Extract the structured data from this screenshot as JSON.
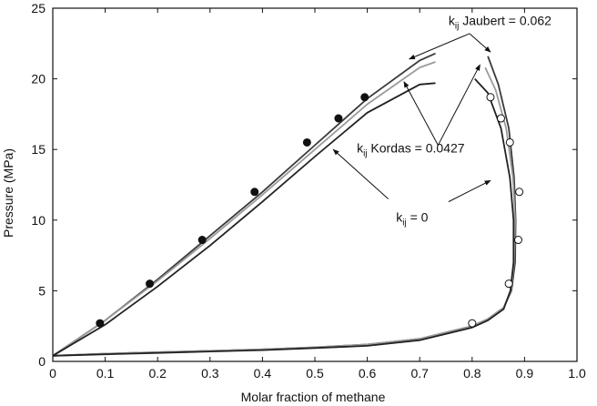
{
  "chart_data": {
    "type": "line",
    "title": "",
    "xlabel": "Molar fraction of methane",
    "ylabel": "Pressure (MPa)",
    "xlim": [
      0,
      1.0
    ],
    "ylim": [
      0,
      25
    ],
    "x_ticks": [
      "0",
      "0.1",
      "0.2",
      "0.3",
      "0.4",
      "0.5",
      "0.6",
      "0.7",
      "0.8",
      "0.9",
      "1.0"
    ],
    "y_ticks": [
      "0",
      "5",
      "10",
      "15",
      "20",
      "25"
    ],
    "grid": false,
    "series": [
      {
        "label_parts": {
          "k": "k",
          "sub": "ij",
          "rest": " Jaubert = 0.062"
        },
        "color": "#3a3a3a",
        "bubble": [
          [
            0,
            0.4
          ],
          [
            0.1,
            2.9
          ],
          [
            0.2,
            5.8
          ],
          [
            0.3,
            8.9
          ],
          [
            0.4,
            12.0
          ],
          [
            0.5,
            15.3
          ],
          [
            0.6,
            18.6
          ],
          [
            0.7,
            21.3
          ],
          [
            0.73,
            21.8
          ]
        ],
        "dew": [
          [
            0.83,
            21.6
          ],
          [
            0.85,
            19.6
          ],
          [
            0.87,
            16.5
          ],
          [
            0.88,
            13.0
          ],
          [
            0.883,
            10.0
          ],
          [
            0.882,
            7.0
          ],
          [
            0.875,
            5.0
          ],
          [
            0.86,
            3.8
          ],
          [
            0.83,
            3.0
          ],
          [
            0.8,
            2.5
          ],
          [
            0.7,
            1.6
          ],
          [
            0.6,
            1.2
          ],
          [
            0.5,
            1.0
          ],
          [
            0.4,
            0.85
          ],
          [
            0.3,
            0.75
          ],
          [
            0.2,
            0.65
          ],
          [
            0.1,
            0.55
          ],
          [
            0,
            0.4
          ]
        ]
      },
      {
        "label_parts": {
          "k": "k",
          "sub": "ij",
          "rest": " Kordas = 0.0427"
        },
        "color": "#9a9a9a",
        "bubble": [
          [
            0,
            0.4
          ],
          [
            0.1,
            2.9
          ],
          [
            0.2,
            5.7
          ],
          [
            0.3,
            8.7
          ],
          [
            0.4,
            11.8
          ],
          [
            0.5,
            15.0
          ],
          [
            0.6,
            18.2
          ],
          [
            0.7,
            20.8
          ],
          [
            0.73,
            21.2
          ]
        ],
        "dew": [
          [
            0.825,
            20.8
          ],
          [
            0.845,
            19.2
          ],
          [
            0.865,
            16.5
          ],
          [
            0.878,
            13.0
          ],
          [
            0.882,
            10.0
          ],
          [
            0.88,
            7.0
          ],
          [
            0.874,
            5.0
          ],
          [
            0.86,
            3.8
          ],
          [
            0.83,
            3.0
          ],
          [
            0.8,
            2.5
          ],
          [
            0.7,
            1.6
          ],
          [
            0.6,
            1.2
          ],
          [
            0.5,
            1.0
          ],
          [
            0.4,
            0.85
          ],
          [
            0.3,
            0.75
          ],
          [
            0.2,
            0.65
          ],
          [
            0.1,
            0.55
          ],
          [
            0,
            0.4
          ]
        ]
      },
      {
        "label_parts": {
          "k": "k",
          "sub": "ij",
          "rest": " = 0"
        },
        "color": "#222222",
        "bubble": [
          [
            0,
            0.4
          ],
          [
            0.1,
            2.6
          ],
          [
            0.2,
            5.3
          ],
          [
            0.3,
            8.2
          ],
          [
            0.4,
            11.3
          ],
          [
            0.5,
            14.5
          ],
          [
            0.6,
            17.6
          ],
          [
            0.7,
            19.6
          ],
          [
            0.73,
            19.7
          ]
        ],
        "dew": [
          [
            0.805,
            20.0
          ],
          [
            0.83,
            19.0
          ],
          [
            0.855,
            16.5
          ],
          [
            0.872,
            13.0
          ],
          [
            0.879,
            10.0
          ],
          [
            0.879,
            7.0
          ],
          [
            0.873,
            5.0
          ],
          [
            0.86,
            3.7
          ],
          [
            0.83,
            2.9
          ],
          [
            0.8,
            2.4
          ],
          [
            0.7,
            1.5
          ],
          [
            0.6,
            1.1
          ],
          [
            0.5,
            0.95
          ],
          [
            0.4,
            0.8
          ],
          [
            0.3,
            0.7
          ],
          [
            0.2,
            0.6
          ],
          [
            0.1,
            0.5
          ],
          [
            0,
            0.4
          ]
        ]
      }
    ],
    "experimental_bubble": [
      [
        0.09,
        2.7
      ],
      [
        0.185,
        5.5
      ],
      [
        0.285,
        8.6
      ],
      [
        0.385,
        12.0
      ],
      [
        0.485,
        15.5
      ],
      [
        0.545,
        17.2
      ],
      [
        0.595,
        18.7
      ]
    ],
    "experimental_dew": [
      [
        0.8,
        2.7
      ],
      [
        0.87,
        5.5
      ],
      [
        0.888,
        8.6
      ],
      [
        0.89,
        12.0
      ],
      [
        0.872,
        15.5
      ],
      [
        0.855,
        17.2
      ],
      [
        0.835,
        18.7
      ]
    ],
    "annotations": [
      {
        "series": 0,
        "text_xy": [
          0.755,
          23.8
        ],
        "arrows_from": [
          [
            0.795,
            23.2
          ],
          [
            0.795,
            23.2
          ]
        ],
        "arrows_to": [
          [
            0.68,
            21.4
          ],
          [
            0.835,
            21.9
          ]
        ]
      },
      {
        "series": 1,
        "text_xy": [
          0.58,
          14.8
        ],
        "arrows_from": [
          [
            0.735,
            15.3
          ],
          [
            0.735,
            15.3
          ]
        ],
        "arrows_to": [
          [
            0.67,
            19.8
          ],
          [
            0.815,
            21.0
          ]
        ]
      },
      {
        "series": 2,
        "text_xy": [
          0.655,
          9.9
        ],
        "arrows_from": [
          [
            0.64,
            11.5
          ],
          [
            0.755,
            11.3
          ]
        ],
        "arrows_to": [
          [
            0.535,
            15.0
          ],
          [
            0.835,
            12.8
          ]
        ]
      }
    ]
  }
}
